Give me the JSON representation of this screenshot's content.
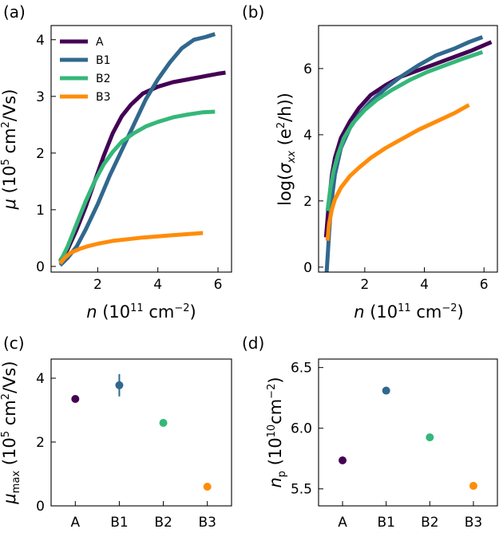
{
  "colors": {
    "A": "#440154",
    "B1": "#31688e",
    "B2": "#35b779",
    "B3": "#ff8c0a"
  },
  "chart_data": [
    {
      "panel": "(a)",
      "type": "line",
      "xlabel_var": "n",
      "xlabel_unit_pre": " (10",
      "xlabel_unit_exp1": "11",
      "xlabel_unit_mid": " cm",
      "xlabel_unit_exp2": "−2",
      "xlabel_unit_post": ")",
      "ylabel_var": "μ",
      "ylabel_unit_pre": " (10",
      "ylabel_unit_exp1": "5",
      "ylabel_unit_mid": " cm",
      "ylabel_unit_exp2": "2",
      "ylabel_unit_post": "/Vs)",
      "xlim": [
        0.45,
        6.45
      ],
      "ylim": [
        -0.1,
        4.25
      ],
      "xticks": [
        2,
        4,
        6
      ],
      "xtick_labels": [
        "2",
        "4",
        "6"
      ],
      "yticks": [
        0,
        1,
        2,
        3,
        4
      ],
      "ytick_labels": [
        "0",
        "1",
        "2",
        "3",
        "4"
      ],
      "legend": [
        "A",
        "B1",
        "B2",
        "B3"
      ],
      "legend_position": "top-left",
      "series": [
        {
          "name": "A",
          "x": [
            0.75,
            1.0,
            1.3,
            1.6,
            1.9,
            2.2,
            2.5,
            2.8,
            3.1,
            3.5,
            4.0,
            4.5,
            5.0,
            5.5,
            6.0,
            6.25
          ],
          "y": [
            0.1,
            0.3,
            0.65,
            1.05,
            1.5,
            1.95,
            2.35,
            2.65,
            2.85,
            3.05,
            3.17,
            3.25,
            3.3,
            3.35,
            3.4,
            3.42
          ]
        },
        {
          "name": "B1",
          "x": [
            0.75,
            1.0,
            1.3,
            1.6,
            2.0,
            2.4,
            2.8,
            3.2,
            3.6,
            4.0,
            4.4,
            4.8,
            5.2,
            5.6,
            5.9
          ],
          "y": [
            0.02,
            0.15,
            0.35,
            0.65,
            1.1,
            1.6,
            2.05,
            2.5,
            2.95,
            3.3,
            3.6,
            3.85,
            4.0,
            4.05,
            4.1
          ]
        },
        {
          "name": "B2",
          "x": [
            0.75,
            1.0,
            1.3,
            1.6,
            1.9,
            2.2,
            2.5,
            2.8,
            3.2,
            3.6,
            4.0,
            4.5,
            5.0,
            5.5,
            5.9
          ],
          "y": [
            0.08,
            0.35,
            0.75,
            1.15,
            1.5,
            1.8,
            2.02,
            2.2,
            2.35,
            2.47,
            2.55,
            2.63,
            2.68,
            2.72,
            2.73
          ]
        },
        {
          "name": "B3",
          "x": [
            0.75,
            0.9,
            1.1,
            1.4,
            1.7,
            2.0,
            2.5,
            3.0,
            3.5,
            4.0,
            4.5,
            5.0,
            5.5
          ],
          "y": [
            0.05,
            0.15,
            0.24,
            0.31,
            0.36,
            0.4,
            0.45,
            0.48,
            0.51,
            0.53,
            0.55,
            0.57,
            0.59
          ]
        }
      ]
    },
    {
      "panel": "(b)",
      "type": "line",
      "xlabel_var": "n",
      "xlabel_unit_pre": " (10",
      "xlabel_unit_exp1": "11",
      "xlabel_unit_mid": " cm",
      "xlabel_unit_exp2": "−2",
      "xlabel_unit_post": ")",
      "ylabel_pre": "log(",
      "ylabel_var": "σ",
      "ylabel_sub": "xx",
      "ylabel_mid": " (e",
      "ylabel_exp": "2",
      "ylabel_post": "/h))",
      "xlim": [
        0.45,
        6.45
      ],
      "ylim": [
        -0.15,
        7.3
      ],
      "xticks": [
        2,
        4,
        6
      ],
      "xtick_labels": [
        "2",
        "4",
        "6"
      ],
      "yticks": [
        0,
        2,
        4,
        6
      ],
      "ytick_labels": [
        "0",
        "2",
        "4",
        "6"
      ],
      "series": [
        {
          "name": "A",
          "x": [
            0.7,
            0.8,
            0.9,
            1.0,
            1.2,
            1.5,
            1.8,
            2.2,
            2.7,
            3.2,
            3.8,
            4.4,
            5.0,
            5.6,
            6.25
          ],
          "y": [
            0.9,
            2.0,
            2.8,
            3.3,
            3.9,
            4.4,
            4.8,
            5.2,
            5.5,
            5.75,
            5.95,
            6.15,
            6.35,
            6.55,
            6.8
          ]
        },
        {
          "name": "B1",
          "x": [
            0.72,
            0.76,
            0.8,
            0.85,
            0.9,
            1.0,
            1.2,
            1.5,
            1.8,
            2.2,
            2.7,
            3.2,
            3.8,
            4.4,
            5.0,
            5.5,
            5.95
          ],
          "y": [
            -0.15,
            0.4,
            1.0,
            1.6,
            2.1,
            2.8,
            3.6,
            4.2,
            4.6,
            5.0,
            5.4,
            5.75,
            6.1,
            6.4,
            6.6,
            6.8,
            6.95
          ]
        },
        {
          "name": "B2",
          "x": [
            0.75,
            0.85,
            0.95,
            1.1,
            1.3,
            1.6,
            2.0,
            2.4,
            2.9,
            3.5,
            4.1,
            4.7,
            5.3,
            5.95
          ],
          "y": [
            1.7,
            2.4,
            2.9,
            3.4,
            3.9,
            4.35,
            4.75,
            5.05,
            5.35,
            5.65,
            5.9,
            6.1,
            6.3,
            6.5
          ]
        },
        {
          "name": "B3",
          "x": [
            0.75,
            0.8,
            0.9,
            1.0,
            1.2,
            1.5,
            1.8,
            2.2,
            2.7,
            3.2,
            3.8,
            4.4,
            5.0,
            5.5
          ],
          "y": [
            0.8,
            1.3,
            1.75,
            2.05,
            2.4,
            2.75,
            3.0,
            3.3,
            3.6,
            3.85,
            4.15,
            4.4,
            4.65,
            4.9
          ]
        }
      ]
    },
    {
      "panel": "(c)",
      "type": "scatter",
      "ylabel_var": "μ",
      "ylabel_sub": "max",
      "ylabel_unit_pre": " (10",
      "ylabel_unit_exp1": "5",
      "ylabel_unit_mid": " cm",
      "ylabel_unit_exp2": "2",
      "ylabel_unit_post": "/Vs)",
      "categories": [
        "A",
        "B1",
        "B2",
        "B3"
      ],
      "values": [
        3.35,
        3.78,
        2.6,
        0.6
      ],
      "errors": [
        0.08,
        0.35,
        0.04,
        0.02
      ],
      "xlim": [
        -0.55,
        3.55
      ],
      "ylim": [
        0,
        4.6
      ],
      "yticks": [
        0,
        2,
        4
      ],
      "ytick_labels": [
        "0",
        "2",
        "4"
      ]
    },
    {
      "panel": "(d)",
      "type": "scatter",
      "ylabel_var": "n",
      "ylabel_sub": "p",
      "ylabel_unit_pre": " (10",
      "ylabel_unit_exp1": "10",
      "ylabel_unit_mid": "cm",
      "ylabel_unit_exp2": "−2",
      "ylabel_unit_post": ")",
      "categories": [
        "A",
        "B1",
        "B2",
        "B3"
      ],
      "values": [
        5.735,
        6.31,
        5.925,
        5.525
      ],
      "errors": [
        0.025,
        0.012,
        0.012,
        0.012
      ],
      "xlim": [
        -0.55,
        3.55
      ],
      "ylim": [
        5.36,
        6.57
      ],
      "yticks": [
        5.5,
        6.0,
        6.5
      ],
      "ytick_labels": [
        "5.5",
        "6.0",
        "6.5"
      ]
    }
  ]
}
